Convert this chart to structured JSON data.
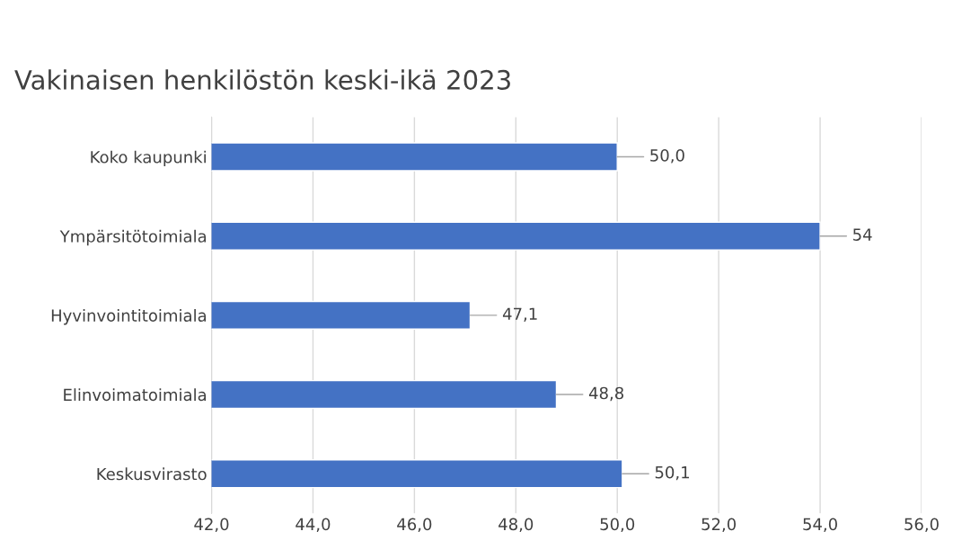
{
  "chart_data": {
    "type": "bar",
    "orientation": "horizontal",
    "title": "Vakinaisen henkilöstön keski-ikä 2023",
    "categories": [
      "Koko kaupunki",
      "Ympärsitötoimiala",
      "Hyvinvointitoimiala",
      "Elinvoimatoimiala",
      "Keskusvirasto"
    ],
    "values": [
      50.0,
      54.0,
      47.1,
      48.8,
      50.1
    ],
    "value_labels": [
      "50,0",
      "54",
      "47,1",
      "48,8",
      "50,1"
    ],
    "color": "#4472c4",
    "xlim": [
      42,
      56
    ],
    "xticks": [
      {
        "value": 42,
        "label": "42,0"
      },
      {
        "value": 44,
        "label": "44,0"
      },
      {
        "value": 46,
        "label": "46,0"
      },
      {
        "value": 48,
        "label": "48,0"
      },
      {
        "value": 50,
        "label": "50,0"
      },
      {
        "value": 52,
        "label": "52,0"
      },
      {
        "value": 54,
        "label": "54,0"
      },
      {
        "value": 56,
        "label": "56,0"
      }
    ],
    "grid": "x"
  }
}
